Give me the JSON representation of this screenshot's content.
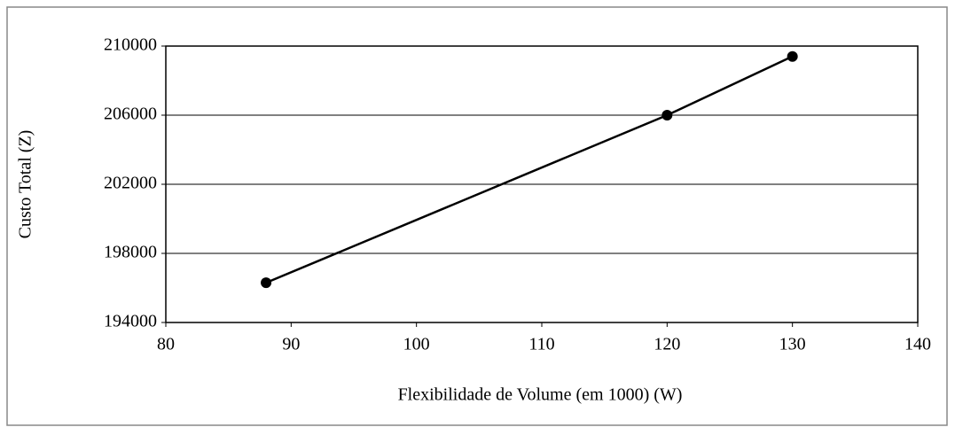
{
  "chart_data": {
    "type": "line",
    "xlabel": "Flexibilidade de Volume (em 1000) (W)",
    "ylabel": "Custo Total (Z)",
    "x": [
      88,
      120,
      130
    ],
    "values": [
      196300,
      206000,
      209400
    ],
    "color": "#000000",
    "xlim": [
      80,
      140
    ],
    "xticks": [
      80,
      90,
      100,
      110,
      120,
      130,
      140
    ],
    "ylim": [
      194000,
      210000
    ],
    "yticks": [
      194000,
      198000,
      202000,
      206000,
      210000
    ],
    "grid": true
  }
}
